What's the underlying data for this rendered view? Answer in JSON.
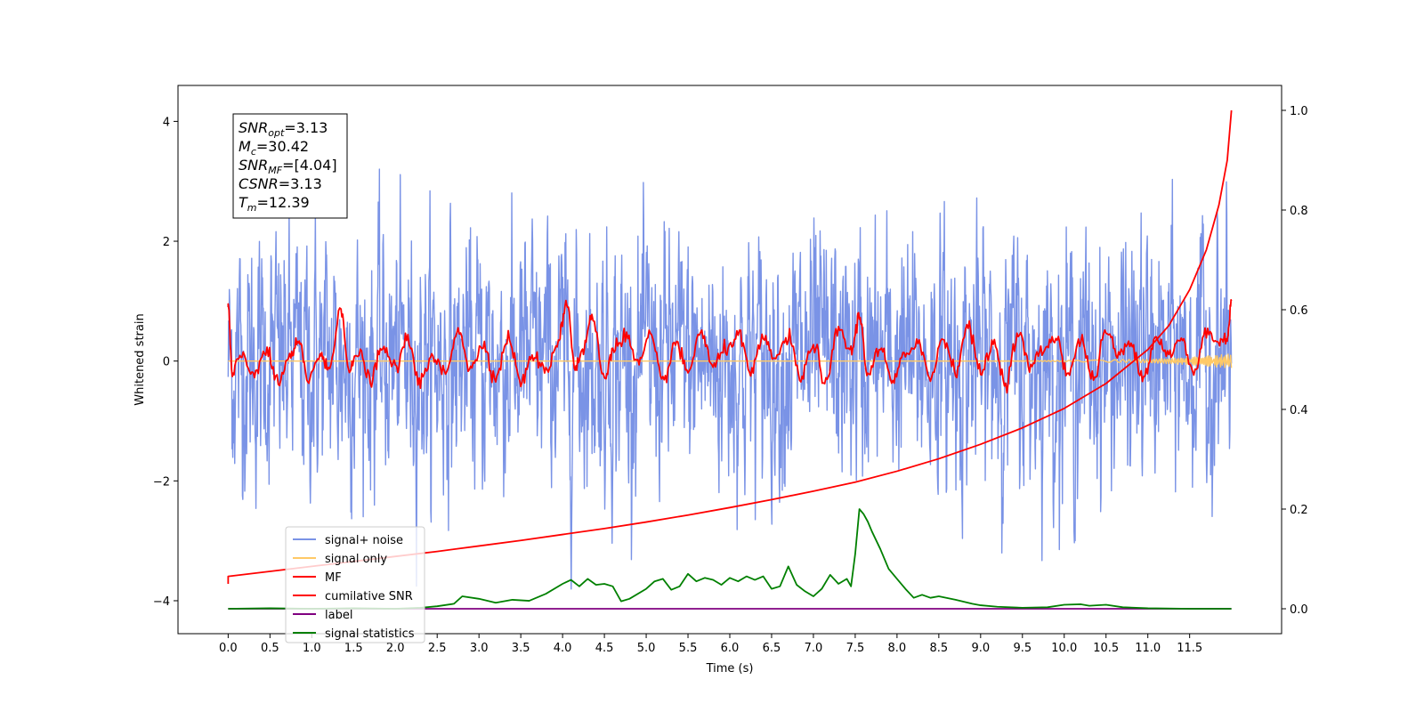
{
  "chart_data": {
    "type": "line",
    "title": "",
    "xlabel": "Time (s)",
    "ylabel": "Whitened strain",
    "ylabel_right": "",
    "xlim": [
      -0.6,
      12.6
    ],
    "ylim": [
      -4.55,
      4.6
    ],
    "ylim_right": [
      -0.05,
      1.05
    ],
    "x_ticks": [
      0.0,
      0.5,
      1.0,
      1.5,
      2.0,
      2.5,
      3.0,
      3.5,
      4.0,
      4.5,
      5.0,
      5.5,
      6.0,
      6.5,
      7.0,
      7.5,
      8.0,
      8.5,
      9.0,
      9.5,
      10.0,
      10.5,
      11.0,
      11.5
    ],
    "x_tick_labels": [
      "0.0",
      "0.5",
      "1.0",
      "1.5",
      "2.0",
      "2.5",
      "3.0",
      "3.5",
      "4.0",
      "4.5",
      "5.0",
      "5.5",
      "6.0",
      "6.5",
      "7.0",
      "7.5",
      "8.0",
      "8.5",
      "9.0",
      "9.5",
      "10.0",
      "10.5",
      "11.0",
      "11.5"
    ],
    "y_ticks": [
      -4,
      -2,
      0,
      2,
      4
    ],
    "y_tick_labels": [
      "−4",
      "−2",
      "0",
      "2",
      "4"
    ],
    "y_right_ticks": [
      0.0,
      0.2,
      0.4,
      0.6,
      0.8,
      1.0
    ],
    "y_right_tick_labels": [
      "0.0",
      "0.2",
      "0.4",
      "0.6",
      "0.8",
      "1.0"
    ],
    "grid": false,
    "legend_position": "lower-left",
    "info_box": {
      "position": "top-left",
      "lines": [
        {
          "sym": "SNR",
          "sub": "opt",
          "value": "=3.13"
        },
        {
          "sym": "M",
          "sub": "c",
          "value": "=30.42"
        },
        {
          "sym": "SNR",
          "sub": "MF",
          "value": "=[4.04]"
        },
        {
          "sym": "CSNR",
          "sub": "",
          "value": "=3.13"
        },
        {
          "sym": "T",
          "sub": "m",
          "value": "=12.39"
        }
      ]
    },
    "series": [
      {
        "name": "signal+ noise",
        "color": "#7a93e6",
        "axis": "left",
        "x_range": [
          0.0,
          12.0
        ],
        "description_values": {
          "approx_mean": 0.0,
          "approx_std": 0.9,
          "min": -4.1,
          "max": 3.4
        }
      },
      {
        "name": "signal only",
        "color": "#ffc966",
        "axis": "left",
        "x": [
          0.0,
          2.0,
          4.0,
          6.0,
          8.0,
          10.0,
          11.0,
          11.5,
          12.0
        ],
        "y": [
          0.0,
          0.0,
          0.0,
          0.0,
          0.0,
          0.01,
          0.03,
          0.06,
          0.12
        ]
      },
      {
        "name": "MF",
        "color": "#ff0000",
        "axis": "left",
        "x": [
          0.0,
          0.05,
          0.15,
          0.3,
          0.45,
          0.6,
          0.75,
          0.85,
          0.95,
          1.1,
          1.2,
          1.35,
          1.45,
          1.55,
          1.7,
          1.85,
          2.0,
          2.15,
          2.3,
          2.45,
          2.6,
          2.75,
          2.9,
          3.05,
          3.2,
          3.35,
          3.5,
          3.65,
          3.8,
          3.95,
          4.05,
          4.15,
          4.25,
          4.35,
          4.5,
          4.6,
          4.75,
          4.9,
          5.05,
          5.2,
          5.35,
          5.5,
          5.65,
          5.8,
          5.95,
          6.1,
          6.25,
          6.4,
          6.55,
          6.7,
          6.85,
          7.0,
          7.15,
          7.3,
          7.45,
          7.55,
          7.65,
          7.8,
          7.95,
          8.1,
          8.25,
          8.4,
          8.55,
          8.7,
          8.85,
          9.0,
          9.15,
          9.3,
          9.45,
          9.6,
          9.75,
          9.9,
          10.05,
          10.2,
          10.35,
          10.5,
          10.65,
          10.8,
          10.95,
          11.1,
          11.25,
          11.4,
          11.55,
          11.7,
          11.85,
          11.95,
          12.0
        ],
        "y": [
          0.9,
          -0.25,
          0.1,
          -0.2,
          0.15,
          -0.35,
          0.1,
          0.3,
          -0.3,
          0.1,
          -0.15,
          0.9,
          -0.2,
          0.15,
          -0.3,
          0.2,
          -0.1,
          0.35,
          -0.35,
          0.05,
          -0.2,
          0.55,
          -0.15,
          0.3,
          -0.3,
          0.4,
          -0.35,
          0.1,
          -0.2,
          0.35,
          1.0,
          -0.1,
          0.2,
          0.75,
          -0.3,
          0.2,
          0.45,
          -0.05,
          0.4,
          -0.35,
          0.3,
          -0.2,
          0.5,
          -0.1,
          0.2,
          0.45,
          -0.2,
          0.35,
          0.05,
          0.4,
          -0.3,
          0.3,
          -0.4,
          0.55,
          0.15,
          0.75,
          -0.2,
          0.2,
          -0.35,
          0.1,
          0.35,
          -0.3,
          0.4,
          -0.15,
          0.6,
          -0.2,
          0.3,
          -0.35,
          0.45,
          -0.1,
          0.2,
          0.4,
          -0.2,
          0.35,
          -0.3,
          0.5,
          0.1,
          0.3,
          -0.25,
          0.4,
          0.1,
          0.35,
          -0.2,
          0.5,
          0.3,
          0.4,
          1.0
        ]
      },
      {
        "name": "cumilative SNR",
        "color": "#ff0000",
        "axis": "right",
        "x": [
          0.0,
          0.5,
          1.0,
          1.5,
          2.0,
          2.5,
          3.0,
          3.5,
          4.0,
          4.5,
          5.0,
          5.5,
          6.0,
          6.5,
          7.0,
          7.5,
          8.0,
          8.5,
          9.0,
          9.5,
          10.0,
          10.5,
          11.0,
          11.25,
          11.5,
          11.7,
          11.85,
          11.95,
          12.0
        ],
        "y": [
          0.065,
          0.075,
          0.085,
          0.095,
          0.105,
          0.115,
          0.126,
          0.137,
          0.149,
          0.161,
          0.174,
          0.188,
          0.203,
          0.219,
          0.236,
          0.254,
          0.276,
          0.301,
          0.33,
          0.363,
          0.402,
          0.452,
          0.52,
          0.568,
          0.64,
          0.72,
          0.81,
          0.9,
          1.0
        ]
      },
      {
        "name": "label",
        "color": "#800080",
        "axis": "right",
        "x": [
          0.0,
          12.0
        ],
        "y": [
          0.0,
          0.0
        ]
      },
      {
        "name": "signal statistics",
        "color": "#008000",
        "axis": "right",
        "x": [
          0.0,
          0.5,
          1.0,
          1.5,
          2.0,
          2.3,
          2.5,
          2.7,
          2.8,
          3.0,
          3.2,
          3.4,
          3.6,
          3.8,
          4.0,
          4.1,
          4.2,
          4.3,
          4.4,
          4.5,
          4.6,
          4.7,
          4.8,
          5.0,
          5.1,
          5.2,
          5.3,
          5.4,
          5.5,
          5.6,
          5.7,
          5.8,
          5.9,
          6.0,
          6.1,
          6.2,
          6.3,
          6.4,
          6.5,
          6.6,
          6.7,
          6.8,
          6.9,
          7.0,
          7.1,
          7.2,
          7.3,
          7.4,
          7.45,
          7.5,
          7.55,
          7.6,
          7.65,
          7.7,
          7.8,
          7.9,
          8.0,
          8.1,
          8.2,
          8.3,
          8.4,
          8.5,
          8.7,
          8.9,
          9.0,
          9.2,
          9.5,
          9.8,
          10.0,
          10.2,
          10.3,
          10.5,
          10.7,
          11.0,
          11.5,
          12.0
        ],
        "y": [
          0.0,
          0.001,
          0.0,
          0.001,
          0.0,
          0.002,
          0.005,
          0.01,
          0.025,
          0.02,
          0.012,
          0.018,
          0.016,
          0.03,
          0.05,
          0.058,
          0.045,
          0.06,
          0.048,
          0.05,
          0.045,
          0.015,
          0.02,
          0.04,
          0.055,
          0.06,
          0.038,
          0.045,
          0.07,
          0.055,
          0.062,
          0.058,
          0.048,
          0.062,
          0.055,
          0.065,
          0.058,
          0.065,
          0.04,
          0.045,
          0.085,
          0.048,
          0.035,
          0.025,
          0.04,
          0.068,
          0.05,
          0.06,
          0.045,
          0.11,
          0.2,
          0.19,
          0.175,
          0.155,
          0.12,
          0.08,
          0.06,
          0.04,
          0.022,
          0.028,
          0.022,
          0.025,
          0.018,
          0.01,
          0.007,
          0.004,
          0.002,
          0.003,
          0.008,
          0.009,
          0.006,
          0.008,
          0.003,
          0.001,
          0.0,
          0.0
        ]
      }
    ]
  }
}
